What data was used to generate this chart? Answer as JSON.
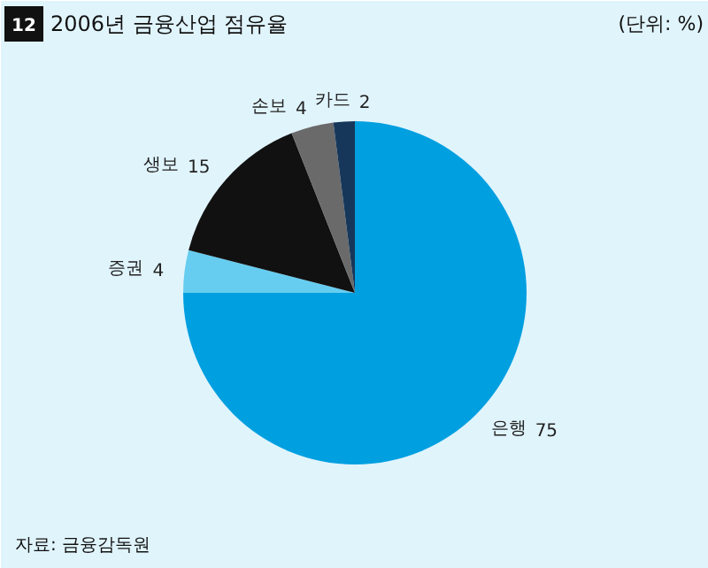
{
  "chart_data": {
    "type": "pie",
    "title": "2006년 금융산업 점유율",
    "subtitle": "(단위: %)",
    "categories": [
      "은행",
      "증권",
      "생보",
      "손보",
      "카드"
    ],
    "values": [
      75,
      4,
      15,
      4,
      2
    ],
    "colors": [
      "#009fe0",
      "#66cdf0",
      "#111111",
      "#6a6a6a",
      "#17375a"
    ],
    "data_labels": true,
    "annotations": [
      "12",
      "자료: 금융감독원"
    ]
  }
}
